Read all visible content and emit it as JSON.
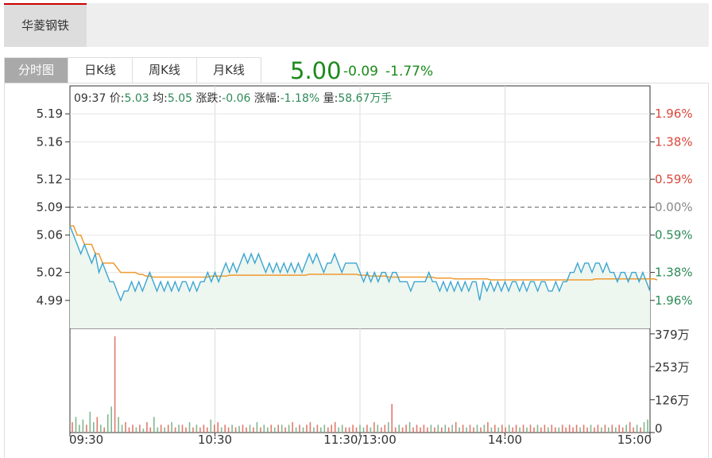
{
  "stock_tab": {
    "label": "华菱钢铁"
  },
  "period_tabs": [
    {
      "label": "分时图",
      "active": true
    },
    {
      "label": "日K线",
      "active": false
    },
    {
      "label": "周K线",
      "active": false
    },
    {
      "label": "月K线",
      "active": false
    }
  ],
  "quote": {
    "price": "5.00",
    "change": "-0.09",
    "change_pct": "-1.77%",
    "color": "#1b8a1b"
  },
  "info_line": {
    "time": "09:37",
    "price_label": "价:",
    "price": "5.03",
    "avg_label": "均:",
    "avg": "5.05",
    "chg_label": "涨跌:",
    "chg": "-0.06",
    "pct_label": "涨幅:",
    "pct": "-1.18%",
    "vol_label": "量:",
    "vol": "58.67万手"
  },
  "chart_data": {
    "type": "line",
    "prev_close": 5.09,
    "price_ylim": [
      4.96,
      5.22
    ],
    "y_ticks": [
      "5.19",
      "5.16",
      "5.12",
      "5.09",
      "5.06",
      "5.02",
      "4.99"
    ],
    "y_tick_values": [
      5.19,
      5.16,
      5.12,
      5.09,
      5.06,
      5.02,
      4.99
    ],
    "pct_ticks": [
      "1.96%",
      "1.38%",
      "0.59%",
      "0.00%",
      "0.59%",
      "1.38%",
      "1.96%"
    ],
    "pct_colors": [
      "#d9473b",
      "#d9473b",
      "#d9473b",
      "#888888",
      "#2e8b57",
      "#2e8b57",
      "#2e8b57"
    ],
    "volume_ticks": [
      "379万",
      "253万",
      "126万",
      "0"
    ],
    "volume_tick_values": [
      379,
      253,
      126,
      0
    ],
    "volume_ylim": [
      0,
      400
    ],
    "x_ticks": [
      "09:30",
      "10:30",
      "11:30/13:00",
      "14:00",
      "15:00"
    ],
    "grid": true,
    "series": [
      {
        "values": [
          5.07,
          5.06,
          5.05,
          5.04,
          5.05,
          5.04,
          5.03,
          5.04,
          5.02,
          5.03,
          5.02,
          5.01,
          5.01,
          5.0,
          4.99,
          5.0,
          5.0,
          5.01,
          5.0,
          5.01,
          5.0,
          5.01,
          5.02,
          5.01,
          5.0,
          5.01,
          5.0,
          5.01,
          5.0,
          5.01,
          5.0,
          5.01,
          5.01,
          5.0,
          5.01,
          5.0,
          5.01,
          5.01,
          5.02,
          5.01,
          5.02,
          5.01,
          5.02,
          5.03,
          5.02,
          5.03,
          5.02,
          5.03,
          5.04,
          5.03,
          5.04,
          5.03,
          5.04,
          5.03,
          5.02,
          5.03,
          5.02,
          5.03,
          5.02,
          5.03,
          5.02,
          5.03,
          5.02,
          5.03,
          5.02,
          5.03,
          5.04,
          5.03,
          5.04,
          5.03,
          5.02,
          5.03,
          5.03,
          5.04,
          5.03,
          5.02,
          5.03,
          5.03,
          5.03,
          5.03,
          5.02,
          5.01,
          5.02,
          5.01,
          5.02,
          5.01,
          5.02,
          5.02,
          5.01,
          5.02,
          5.02,
          5.01,
          5.01,
          5.01,
          5.0,
          5.01,
          5.01,
          5.01,
          5.01,
          5.02,
          5.01,
          5.01,
          5.0,
          5.01,
          5.0,
          5.01,
          5.0,
          5.01,
          5.0,
          5.01,
          5.0,
          5.01,
          5.01,
          4.99,
          5.01,
          5.0,
          5.01,
          5.0,
          5.01,
          5.0,
          5.01,
          5.0,
          5.01,
          5.01,
          5.0,
          5.01,
          5.0,
          5.01,
          5.01,
          5.0,
          5.01,
          5.01,
          5.0,
          5.0,
          5.01,
          5.0,
          5.01,
          5.01,
          5.02,
          5.02,
          5.03,
          5.02,
          5.03,
          5.03,
          5.02,
          5.03,
          5.03,
          5.02,
          5.03,
          5.02,
          5.02,
          5.01,
          5.02,
          5.02,
          5.01,
          5.02,
          5.02,
          5.01,
          5.02,
          5.01,
          5.0
        ]
      },
      {
        "values": [
          5.07,
          5.07,
          5.06,
          5.06,
          5.05,
          5.05,
          5.05,
          5.04,
          5.04,
          5.03,
          5.03,
          5.03,
          5.03,
          5.025,
          5.02,
          5.02,
          5.02,
          5.02,
          5.02,
          5.018,
          5.018,
          5.016,
          5.016,
          5.015,
          5.015,
          5.015,
          5.015,
          5.015,
          5.015,
          5.015,
          5.015,
          5.015,
          5.015,
          5.015,
          5.015,
          5.015,
          5.015,
          5.015,
          5.015,
          5.016,
          5.016,
          5.016,
          5.016,
          5.016,
          5.017,
          5.017,
          5.017,
          5.017,
          5.017,
          5.017,
          5.017,
          5.017,
          5.017,
          5.017,
          5.017,
          5.017,
          5.017,
          5.017,
          5.017,
          5.017,
          5.017,
          5.017,
          5.017,
          5.017,
          5.017,
          5.017,
          5.018,
          5.018,
          5.018,
          5.018,
          5.018,
          5.018,
          5.018,
          5.018,
          5.018,
          5.018,
          5.018,
          5.018,
          5.018,
          5.018,
          5.017,
          5.017,
          5.017,
          5.016,
          5.016,
          5.016,
          5.016,
          5.016,
          5.015,
          5.015,
          5.015,
          5.015,
          5.015,
          5.015,
          5.015,
          5.015,
          5.015,
          5.015,
          5.015,
          5.015,
          5.015,
          5.014,
          5.014,
          5.014,
          5.014,
          5.014,
          5.013,
          5.013,
          5.013,
          5.013,
          5.013,
          5.013,
          5.013,
          5.013,
          5.013,
          5.013,
          5.012,
          5.012,
          5.012,
          5.012,
          5.012,
          5.012,
          5.012,
          5.012,
          5.012,
          5.012,
          5.012,
          5.012,
          5.012,
          5.012,
          5.012,
          5.012,
          5.012,
          5.012,
          5.012,
          5.012,
          5.012,
          5.012,
          5.012,
          5.012,
          5.012,
          5.012,
          5.012,
          5.012,
          5.012,
          5.013,
          5.013,
          5.013,
          5.013,
          5.013,
          5.013,
          5.013,
          5.013,
          5.013,
          5.013,
          5.013,
          5.013,
          5.013,
          5.013,
          5.013,
          5.013,
          5.013,
          5.012
        ]
      }
    ],
    "volumes": [
      40,
      60,
      30,
      50,
      30,
      80,
      40,
      60,
      30,
      20,
      70,
      100,
      370,
      60,
      30,
      40,
      20,
      30,
      20,
      30,
      15,
      40,
      20,
      60,
      20,
      30,
      20,
      30,
      40,
      20,
      30,
      30,
      20,
      40,
      20,
      30,
      20,
      30,
      20,
      50,
      30,
      40,
      20,
      30,
      20,
      30,
      20,
      25,
      30,
      20,
      30,
      20,
      40,
      20,
      30,
      20,
      30,
      20,
      30,
      30,
      20,
      30,
      40,
      20,
      30,
      20,
      30,
      40,
      20,
      30,
      20,
      30,
      20,
      30,
      40,
      20,
      30,
      20,
      20,
      30,
      20,
      30,
      20,
      30,
      20,
      40,
      30,
      20,
      30,
      40,
      110,
      20,
      30,
      20,
      30,
      40,
      20,
      30,
      20,
      30,
      20,
      30,
      20,
      30,
      20,
      30,
      20,
      30,
      40,
      20,
      30,
      20,
      30,
      20,
      30,
      20,
      30,
      40,
      20,
      30,
      20,
      30,
      20,
      30,
      20,
      30,
      20,
      30,
      20,
      30,
      20,
      30,
      20,
      30,
      20,
      30,
      20,
      20,
      30,
      20,
      30,
      20,
      30,
      20,
      30,
      20,
      30,
      20,
      30,
      20,
      30,
      20,
      30,
      20,
      30,
      20,
      30,
      40,
      20,
      30,
      20,
      40,
      50
    ],
    "colors": {
      "price_line": "#3aa6d0",
      "avg_line": "#ef9a2e",
      "area_fill": "#eef6f0",
      "vol_up": "#e07a6e",
      "vol_down": "#7fb88f"
    }
  }
}
